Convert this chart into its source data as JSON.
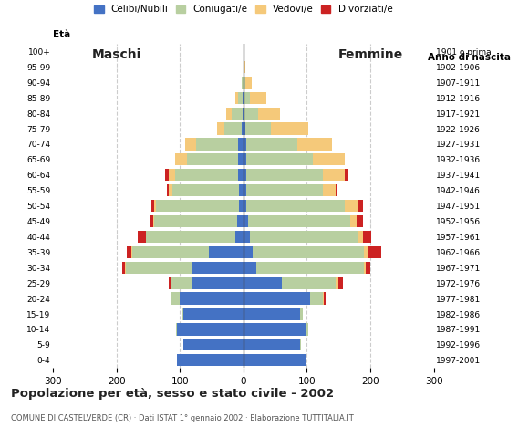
{
  "age_groups": [
    "0-4",
    "5-9",
    "10-14",
    "15-19",
    "20-24",
    "25-29",
    "30-34",
    "35-39",
    "40-44",
    "45-49",
    "50-54",
    "55-59",
    "60-64",
    "65-69",
    "70-74",
    "75-79",
    "80-84",
    "85-89",
    "90-94",
    "95-99",
    "100+"
  ],
  "birth_years": [
    "1997-2001",
    "1992-1996",
    "1987-1991",
    "1982-1986",
    "1977-1981",
    "1972-1976",
    "1967-1971",
    "1962-1966",
    "1957-1961",
    "1952-1956",
    "1947-1951",
    "1942-1946",
    "1937-1941",
    "1932-1936",
    "1927-1931",
    "1922-1926",
    "1917-1921",
    "1912-1916",
    "1907-1911",
    "1902-1906",
    "1901 o prima"
  ],
  "males": {
    "celibe": [
      105,
      95,
      105,
      95,
      100,
      80,
      80,
      55,
      13,
      10,
      7,
      7,
      8,
      9,
      9,
      2,
      1,
      1,
      0,
      0,
      0
    ],
    "coniugato": [
      0,
      0,
      1,
      2,
      15,
      35,
      105,
      120,
      140,
      130,
      130,
      105,
      100,
      80,
      65,
      28,
      18,
      8,
      2,
      0,
      0
    ],
    "vedovo": [
      0,
      0,
      0,
      0,
      0,
      0,
      1,
      1,
      1,
      2,
      3,
      5,
      10,
      18,
      18,
      12,
      8,
      4,
      1,
      0,
      0
    ],
    "divorziato": [
      0,
      0,
      0,
      0,
      0,
      2,
      5,
      8,
      13,
      5,
      5,
      3,
      5,
      0,
      0,
      0,
      0,
      0,
      0,
      0,
      0
    ]
  },
  "females": {
    "nubile": [
      100,
      90,
      100,
      90,
      105,
      60,
      20,
      15,
      10,
      8,
      5,
      5,
      5,
      5,
      5,
      3,
      1,
      1,
      0,
      0,
      0
    ],
    "coniugata": [
      0,
      1,
      2,
      3,
      20,
      85,
      170,
      175,
      170,
      160,
      155,
      120,
      120,
      105,
      80,
      40,
      22,
      10,
      3,
      1,
      0
    ],
    "vedova": [
      0,
      0,
      0,
      0,
      2,
      5,
      3,
      5,
      8,
      10,
      20,
      20,
      35,
      50,
      55,
      60,
      35,
      25,
      10,
      2,
      1
    ],
    "divorziata": [
      0,
      0,
      0,
      0,
      3,
      7,
      7,
      22,
      13,
      10,
      8,
      3,
      5,
      0,
      0,
      0,
      0,
      0,
      0,
      0,
      0
    ]
  },
  "colors": {
    "celibe_nubile": "#4472c4",
    "coniugato_a": "#b8cfa0",
    "vedovo_a": "#f5c97a",
    "divorziato_a": "#cc2222"
  },
  "xlim": 300,
  "title": "Popolazione per età, sesso e stato civile - 2002",
  "subtitle": "COMUNE DI CASTELVERDE (CR) · Dati ISTAT 1° gennaio 2002 · Elaborazione TUTTITALIA.IT",
  "ylabel_left": "Età",
  "ylabel_right": "Anno di nascita",
  "label_maschi": "Maschi",
  "label_femmine": "Femmine",
  "legend_labels": [
    "Celibi/Nubili",
    "Coniugati/e",
    "Vedovi/e",
    "Divorziati/e"
  ]
}
